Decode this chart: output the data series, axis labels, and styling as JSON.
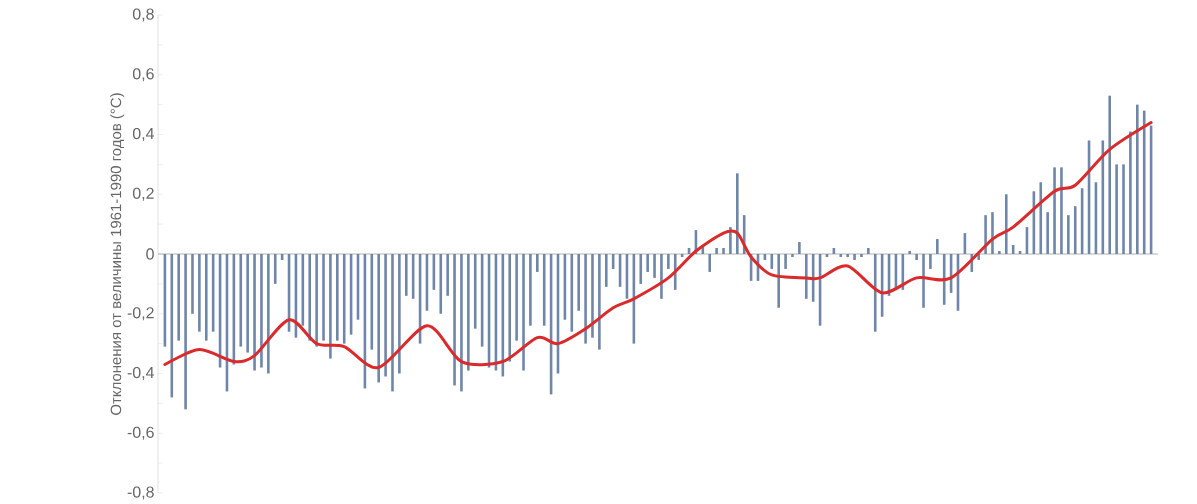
{
  "chart_data": {
    "type": "bar",
    "ylabel": "Отклонения от величины 1961-1990 годов (°C)",
    "categories": [
      null,
      null,
      null,
      null,
      null,
      null,
      null,
      null,
      null,
      null,
      null,
      null,
      null,
      null,
      null,
      null,
      null,
      null,
      null,
      null,
      null,
      null,
      null,
      null,
      null,
      null,
      null,
      null,
      null,
      null,
      null,
      null,
      null,
      null,
      null,
      null,
      null,
      null,
      null,
      null,
      null,
      null,
      null,
      null,
      null,
      null,
      null,
      null,
      null,
      null,
      null,
      null,
      null,
      null,
      null,
      null,
      null,
      null,
      null,
      null,
      null,
      null,
      null,
      null,
      null,
      null,
      null,
      null,
      null,
      null,
      null,
      null,
      null,
      null,
      null,
      null,
      null,
      null,
      null,
      null,
      null,
      null,
      null,
      null,
      null,
      null,
      null,
      null,
      null,
      null,
      null,
      null,
      null,
      null,
      null,
      null,
      null,
      null,
      null,
      null,
      null,
      null,
      null,
      null,
      null,
      null,
      null,
      null,
      null,
      null,
      null,
      null,
      null,
      null,
      null,
      null,
      null,
      null,
      null,
      null,
      null,
      null,
      null,
      null,
      null,
      null,
      null,
      null,
      null,
      null,
      null,
      null,
      null,
      null,
      null,
      null,
      null,
      null,
      null,
      null,
      null,
      null,
      null,
      null
    ],
    "series": [
      {
        "color": "#6f86a8",
        "values": [
          -0.31,
          -0.48,
          -0.29,
          -0.52,
          -0.2,
          -0.26,
          -0.29,
          -0.26,
          -0.38,
          -0.46,
          -0.37,
          -0.31,
          -0.33,
          -0.39,
          -0.38,
          -0.4,
          -0.1,
          -0.02,
          -0.26,
          -0.28,
          -0.24,
          -0.29,
          -0.31,
          -0.29,
          -0.35,
          -0.29,
          -0.3,
          -0.27,
          -0.22,
          -0.45,
          -0.32,
          -0.43,
          -0.41,
          -0.46,
          -0.4,
          -0.14,
          -0.15,
          -0.3,
          -0.19,
          -0.12,
          -0.2,
          -0.14,
          -0.44,
          -0.46,
          -0.39,
          -0.25,
          -0.31,
          -0.38,
          -0.39,
          -0.41,
          -0.36,
          -0.29,
          -0.39,
          -0.24,
          -0.06,
          -0.24,
          -0.47,
          -0.4,
          -0.22,
          -0.26,
          -0.19,
          -0.3,
          -0.28,
          -0.32,
          -0.11,
          -0.05,
          -0.11,
          -0.15,
          -0.3,
          -0.1,
          -0.06,
          -0.08,
          -0.15,
          -0.05,
          -0.12,
          -0.01,
          0.02,
          0.08,
          0.03,
          -0.06,
          0.02,
          0.02,
          0.09,
          0.27,
          0.13,
          -0.09,
          -0.09,
          -0.02,
          -0.05,
          -0.18,
          -0.05,
          -0.01,
          0.04,
          -0.15,
          -0.16,
          -0.24,
          -0.01,
          0.02,
          -0.01,
          -0.01,
          -0.02,
          -0.01,
          0.02,
          -0.26,
          -0.21,
          -0.14,
          -0.12,
          -0.12,
          0.01,
          -0.02,
          -0.18,
          -0.05,
          0.05,
          -0.17,
          -0.13,
          -0.19,
          0.07,
          -0.06,
          -0.02,
          0.13,
          0.14,
          0.01,
          0.2,
          0.03,
          0.01,
          0.09,
          0.21,
          0.24,
          0.14,
          0.29,
          0.29,
          0.13,
          0.16,
          0.22,
          0.38,
          0.24,
          0.38,
          0.53,
          0.3,
          0.3,
          0.41,
          0.5,
          0.48,
          0.43
        ]
      },
      {
        "type": "line",
        "color": "#d92b2b",
        "line_style": "solid",
        "values": [
          -0.37,
          null,
          null,
          null,
          null,
          -0.32,
          null,
          null,
          null,
          null,
          -0.36,
          null,
          null,
          -0.34,
          null,
          null,
          null,
          null,
          -0.22,
          null,
          null,
          null,
          -0.3,
          null,
          null,
          null,
          -0.31,
          null,
          null,
          null,
          null,
          -0.38,
          null,
          null,
          null,
          null,
          null,
          null,
          -0.24,
          null,
          null,
          null,
          null,
          -0.36,
          null,
          null,
          null,
          null,
          null,
          -0.36,
          null,
          null,
          null,
          null,
          -0.28,
          null,
          null,
          -0.3,
          null,
          null,
          null,
          -0.25,
          null,
          null,
          null,
          -0.18,
          null,
          null,
          -0.15,
          null,
          null,
          null,
          null,
          -0.08,
          null,
          null,
          null,
          0.01,
          null,
          null,
          null,
          0.07,
          null,
          0.07,
          null,
          -0.01,
          null,
          null,
          -0.07,
          null,
          null,
          null,
          null,
          -0.08,
          null,
          -0.08,
          null,
          null,
          null,
          -0.04,
          null,
          null,
          null,
          null,
          -0.13,
          null,
          null,
          null,
          null,
          -0.08,
          null,
          null,
          null,
          null,
          -0.08,
          null,
          null,
          null,
          null,
          null,
          0.05,
          null,
          null,
          0.09,
          null,
          null,
          null,
          null,
          null,
          0.21,
          null,
          null,
          0.23,
          null,
          null,
          null,
          null,
          0.35,
          null,
          null,
          null,
          null,
          null,
          0.44
        ]
      }
    ],
    "ylim": [
      -0.8,
      0.8
    ],
    "yticks": [
      {
        "value": -0.8,
        "label": "-0,8"
      },
      {
        "value": -0.7,
        "label": null
      },
      {
        "value": -0.6,
        "label": "-0,6"
      },
      {
        "value": -0.5,
        "label": null
      },
      {
        "value": -0.4,
        "label": "-0,4"
      },
      {
        "value": -0.3,
        "label": null
      },
      {
        "value": -0.2,
        "label": "-0,2"
      },
      {
        "value": -0.1,
        "label": null
      },
      {
        "value": 0,
        "label": "0"
      },
      {
        "value": 0.1,
        "label": null
      },
      {
        "value": 0.2,
        "label": "0,2"
      },
      {
        "value": 0.3,
        "label": null
      },
      {
        "value": 0.4,
        "label": "0,4"
      },
      {
        "value": 0.5,
        "label": null
      },
      {
        "value": 0.6,
        "label": "0,6"
      },
      {
        "value": 0.7,
        "label": null
      },
      {
        "value": 0.8,
        "label": "0,8"
      }
    ],
    "tick_labels": "y"
  }
}
